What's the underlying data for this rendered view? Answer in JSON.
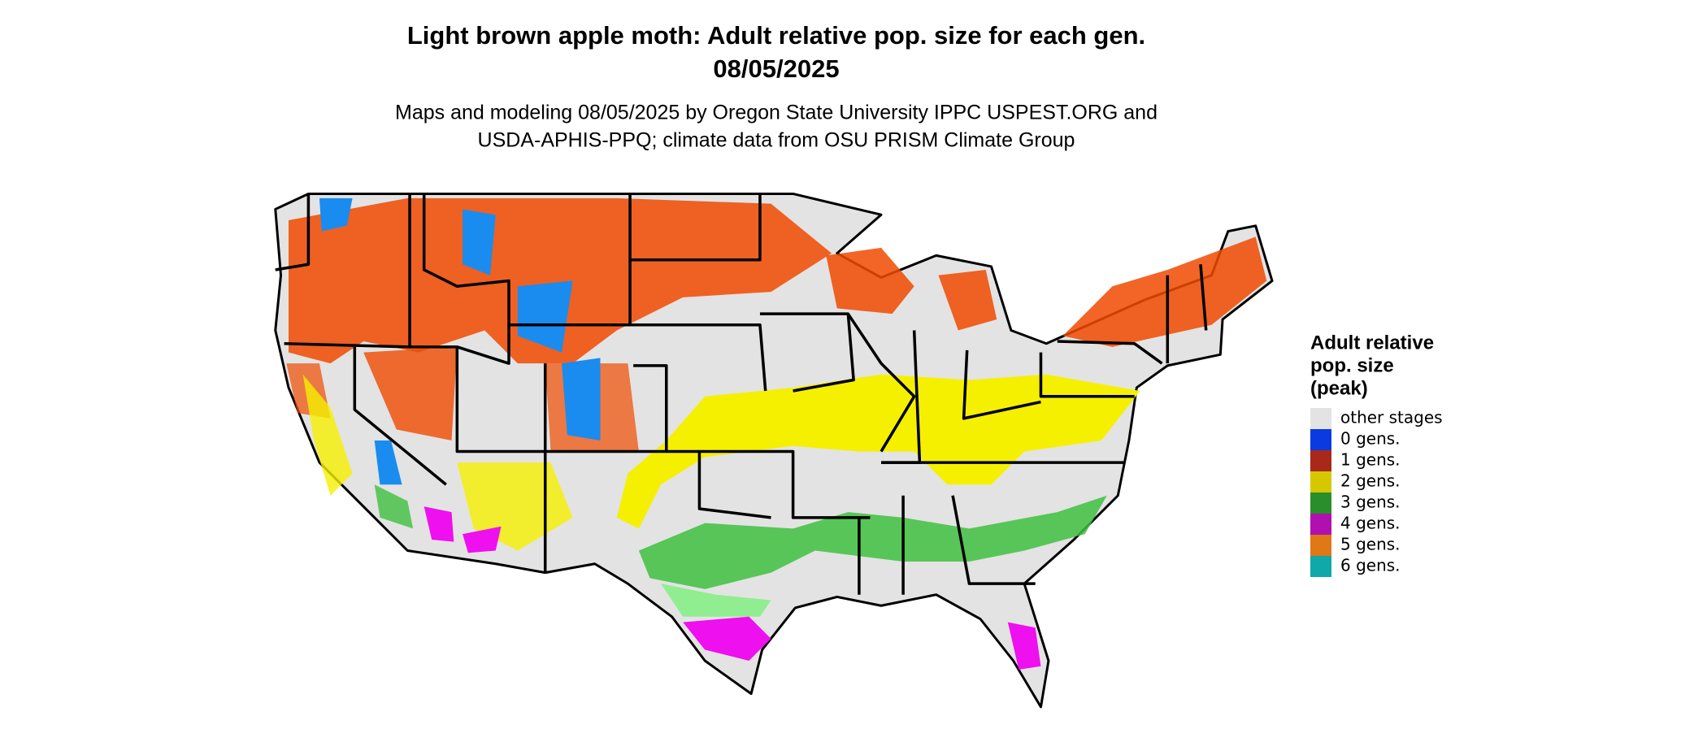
{
  "header": {
    "title": [
      "Light brown apple moth: Adult relative pop. size for each gen.",
      "08/05/2025"
    ],
    "subtitle": [
      "Maps and modeling 08/05/2025 by Oregon State University IPPC USPEST.ORG and",
      "USDA-APHIS-PPQ; climate data from OSU PRISM Climate Group"
    ]
  },
  "legend": {
    "title": [
      "Adult relative",
      "pop. size",
      "(peak)"
    ],
    "items": [
      {
        "label": "other stages",
        "color": "#e3e3e3"
      },
      {
        "label": "0 gens.",
        "color": "#0a3ae0"
      },
      {
        "label": "1 gens.",
        "color": "#a8281a"
      },
      {
        "label": "2 gens.",
        "color": "#d6c800"
      },
      {
        "label": "3 gens.",
        "color": "#2a8f2a"
      },
      {
        "label": "4 gens.",
        "color": "#b010b0"
      },
      {
        "label": "5 gens.",
        "color": "#e07818"
      },
      {
        "label": "6 gens.",
        "color": "#10a8a8"
      }
    ]
  }
}
